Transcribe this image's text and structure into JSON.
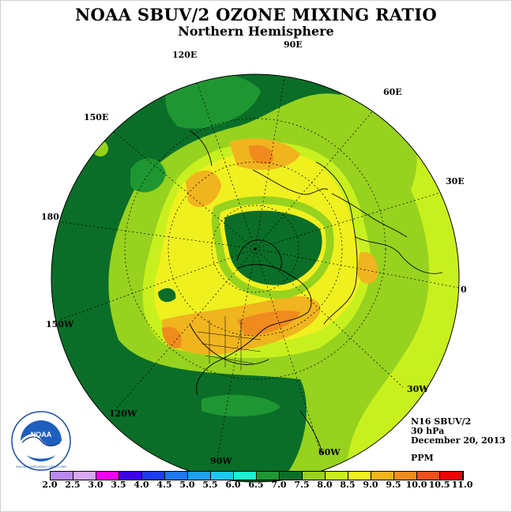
{
  "title": "NOAA SBUV/2 OZONE MIXING RATIO",
  "subtitle": "Northern Hemisphere",
  "longitude_labels": {
    "lon_120e": "120E",
    "lon_90e": "90E",
    "lon_60e": "60E",
    "lon_150e": "150E",
    "lon_30e": "30E",
    "lon_180": "180",
    "lon_0": "0",
    "lon_150w": "150W",
    "lon_30w": "30W",
    "lon_120w": "120W",
    "lon_60w": "60W",
    "lon_90w": "90W"
  },
  "info": {
    "instrument": "N16 SBUV/2",
    "level": "30 hPa",
    "date": "December 20, 2013",
    "units": "PPM"
  },
  "logo": {
    "text": "NOAA",
    "ring_text": "NATIONAL OCEANIC AND ATMOSPHERIC ADMINISTRATION · U.S. DEPARTMENT OF COMMERCE"
  },
  "colorbar": {
    "ticks": [
      "2.0",
      "2.5",
      "3.0",
      "3.5",
      "4.0",
      "4.5",
      "5.0",
      "5.5",
      "6.0",
      "6.5",
      "7.0",
      "7.5",
      "8.0",
      "8.5",
      "9.0",
      "9.5",
      "10.0",
      "10.5",
      "11.0"
    ],
    "colors": [
      "#b989f0",
      "#d8a8f0",
      "#f200f2",
      "#3c00e6",
      "#1e3cf0",
      "#1e78f0",
      "#1ea0f0",
      "#1ec8f0",
      "#1ef0d2",
      "#1e9632",
      "#0a6e28",
      "#96d21e",
      "#c8f01e",
      "#f0f01e",
      "#f0b41e",
      "#f08c1e",
      "#f0501e",
      "#f00000",
      "#8c5032"
    ]
  },
  "palette": {
    "ppm_6_5": "#1e9632",
    "ppm_7_0": "#0a6e28",
    "ppm_7_5": "#96d21e",
    "ppm_8_0": "#c8f01e",
    "ppm_8_5": "#f0f01e",
    "ppm_9_0": "#f0b41e",
    "ppm_9_5": "#f08c1e"
  }
}
